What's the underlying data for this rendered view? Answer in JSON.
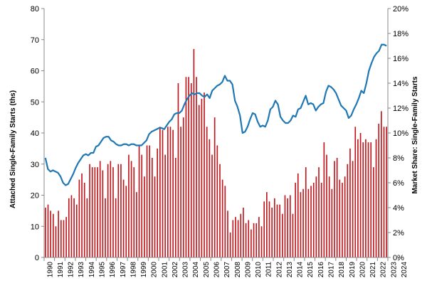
{
  "chart_data": {
    "type": "bar+line",
    "title": "",
    "xlabel": "",
    "ylabel_left": "Attached Single-Family Starts (ths)",
    "ylabel_right": "Market Share: Single-Family Starts",
    "ylim_left": [
      0,
      80
    ],
    "ylim_right": [
      0,
      20
    ],
    "left_ticks": [
      "0",
      "10",
      "20",
      "30",
      "40",
      "50",
      "60",
      "70",
      "80"
    ],
    "right_ticks": [
      "0%",
      "2%",
      "4%",
      "6%",
      "8%",
      "10%",
      "12%",
      "14%",
      "16%",
      "18%",
      "20%"
    ],
    "x_ticks": [
      "1990",
      "1991",
      "1992",
      "1993",
      "1994",
      "1995",
      "1996",
      "1997",
      "1998",
      "1999",
      "2000",
      "2001",
      "2002",
      "2003",
      "2004",
      "2005",
      "2006",
      "2007",
      "2008",
      "2009",
      "2010",
      "2011",
      "2012",
      "2013",
      "2014",
      "2015",
      "2016",
      "2017",
      "2018",
      "2019",
      "2020",
      "2021",
      "2022",
      "2023",
      "2024"
    ],
    "x_start": 1990,
    "periods_per_year": 4,
    "grid": false,
    "legend": "none",
    "colors": {
      "bars": "#c0161b",
      "line": "#1f77b4"
    },
    "series": [
      {
        "type": "bar",
        "axis": "left",
        "values": [
          16,
          17,
          15,
          14,
          10,
          15,
          12,
          12,
          13,
          19,
          20,
          19,
          17,
          25,
          27,
          24,
          19,
          30,
          29,
          29,
          29,
          31,
          28,
          19,
          30,
          31,
          29,
          19,
          30,
          30,
          25,
          23,
          33,
          31,
          29,
          21,
          36,
          33,
          26,
          36,
          36,
          32,
          26,
          35,
          42,
          41,
          33,
          42,
          42,
          41,
          32,
          56,
          42,
          45,
          58,
          58,
          56,
          67,
          58,
          49,
          51,
          53,
          42,
          38,
          33,
          45,
          36,
          30,
          25,
          23,
          15,
          8,
          12,
          13,
          12,
          14,
          16,
          11,
          12,
          9,
          11,
          11,
          13,
          10,
          18,
          21,
          18,
          16,
          19,
          17,
          17,
          14,
          20,
          19,
          20,
          14,
          24,
          27,
          21,
          22,
          29,
          22,
          23,
          24,
          26,
          29,
          24,
          37,
          33,
          26,
          22,
          31,
          32,
          25,
          24,
          26,
          30,
          35,
          31,
          42,
          38,
          40,
          37,
          38,
          37,
          37,
          29,
          38,
          43,
          47,
          42,
          42
        ]
      },
      {
        "type": "line",
        "axis": "right",
        "values": [
          8.0,
          7.1,
          6.9,
          7.0,
          6.9,
          6.8,
          6.5,
          6.0,
          5.8,
          5.9,
          6.3,
          6.7,
          7.2,
          7.6,
          7.9,
          8.2,
          8.3,
          8.2,
          8.4,
          8.4,
          8.9,
          9.0,
          9.3,
          9.6,
          9.7,
          9.7,
          9.4,
          9.3,
          9.1,
          9.0,
          9.0,
          9.1,
          9.1,
          9.0,
          9.1,
          9.1,
          9.0,
          9.0,
          9.0,
          9.2,
          9.4,
          9.9,
          10.1,
          10.2,
          10.3,
          10.4,
          10.4,
          10.3,
          10.6,
          10.9,
          11.1,
          11.5,
          11.6,
          11.6,
          11.8,
          12.3,
          12.7,
          13.0,
          13.2,
          13.1,
          13.2,
          13.2,
          13.0,
          12.9,
          13.1,
          12.8,
          13.4,
          13.6,
          13.8,
          13.9,
          14.1,
          14.6,
          14.2,
          14.2,
          13.9,
          12.6,
          12.1,
          11.4,
          10.0,
          10.1,
          10.5,
          11.1,
          11.6,
          11.5,
          10.9,
          10.5,
          10.6,
          10.5,
          11.0,
          11.9,
          12.1,
          12.6,
          12.3,
          11.3,
          11.0,
          10.8,
          10.8,
          11.0,
          11.4,
          11.3,
          11.9,
          12.0,
          12.5,
          13.0,
          12.3,
          12.4,
          12.3,
          11.8,
          12.1,
          12.3,
          12.4,
          13.3,
          13.8,
          13.7,
          13.5,
          13.2,
          12.7,
          12.2,
          12.0,
          11.8,
          11.2,
          11.4,
          11.9,
          12.3,
          12.8,
          13.4,
          13.2,
          14.0,
          15.0,
          15.6,
          16.1,
          16.4,
          16.6,
          17.1,
          17.1,
          17.0
        ]
      }
    ]
  }
}
